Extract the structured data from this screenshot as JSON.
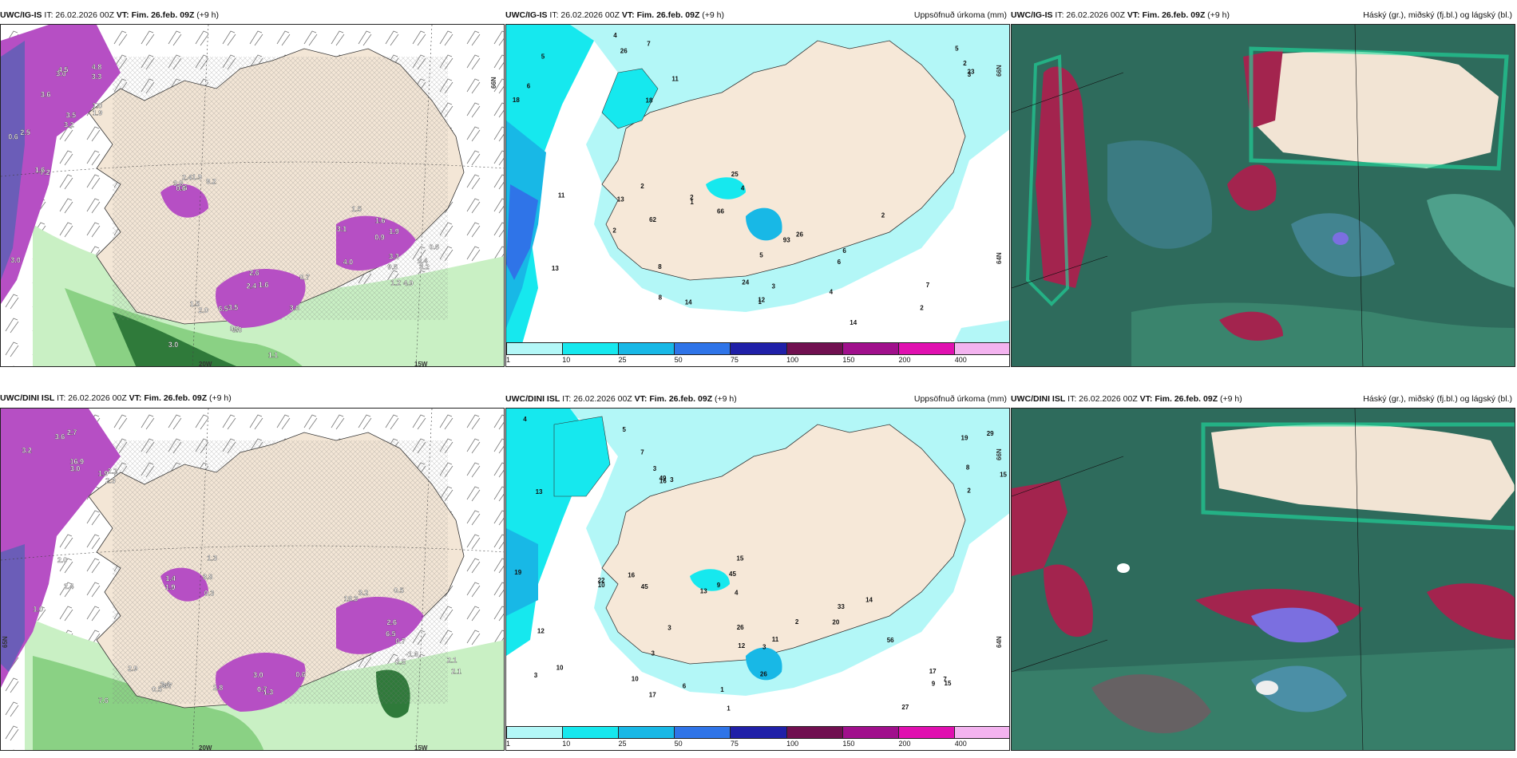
{
  "rows": [
    {
      "temp_panel": {
        "model": "UWC/IG-IS",
        "it": "IT: 26.02.2026 00Z",
        "vt": "VT: Fim. 26.feb. 09Z",
        "lead": "(+9 h)"
      },
      "precip_panel": {
        "model": "UWC/IG-IS",
        "it": "IT: 26.02.2026 00Z",
        "vt": "VT: Fim. 26.feb. 09Z",
        "lead": "(+9 h)",
        "title": "Uppsöfnuð úrkoma (mm)"
      },
      "cloud_panel": {
        "model": "UWC/IG-IS",
        "it": "IT: 26.02.2026 00Z",
        "vt": "VT: Fim. 26.feb. 09Z",
        "lead": "(+9 h)",
        "title": "Háský (gr.), miðský (fj.bl.) og lágský (bl.)"
      }
    },
    {
      "temp_panel": {
        "model": "UWC/DINI ISL",
        "it": "IT: 26.02.2026 00Z",
        "vt": "VT: Fim. 26.feb. 09Z",
        "lead": "(+9 h)"
      },
      "precip_panel": {
        "model": "UWC/DINI ISL",
        "it": "IT: 26.02.2026 00Z",
        "vt": "VT: Fim. 26.feb. 09Z",
        "lead": "(+9 h)",
        "title": "Uppsöfnuð úrkoma (mm)"
      },
      "cloud_panel": {
        "model": "UWC/DINI ISL",
        "it": "IT: 26.02.2026 00Z",
        "vt": "VT: Fim. 26.feb. 09Z",
        "lead": "(+9 h)",
        "title": "Háský (gr.), miðský (fj.bl.) og lágský (bl.)"
      }
    }
  ],
  "precip_colorbar": {
    "ticks": [
      "1",
      "10",
      "25",
      "50",
      "75",
      "100",
      "150",
      "200",
      "400"
    ],
    "colors": [
      "#b3f7f7",
      "#16e8ee",
      "#18b8e6",
      "#2f74e8",
      "#2020a8",
      "#701050",
      "#a0108c",
      "#e010b0",
      "#f3b3ef"
    ]
  },
  "grid_labels": {
    "top_temp": {
      "lon1": "20W",
      "lon2": "15W",
      "lat1": "66N"
    },
    "top_precip": {
      "lat1": "66N",
      "lat2": "64N"
    },
    "bottom_temp": {
      "lon1": "20W",
      "lon2": "15W",
      "lat1": "65N"
    },
    "bottom_precip": {
      "lat1": "66N",
      "lat2": "64N"
    }
  },
  "temp_labels": {
    "top": [
      "7.2",
      "3.0",
      "2.4",
      "4.0",
      "2.0",
      "4.9",
      "1.9",
      "3.6",
      "4.8",
      "1.6",
      "1.5",
      "1.1",
      "9.6",
      "9.2",
      "1.6",
      "3.3",
      "6.5",
      "1.6",
      "1.5",
      "1.2",
      "1.6",
      "3.0",
      "3.2",
      "2.6",
      "1.9",
      "3.0",
      "3.3",
      "2.4",
      "0.6",
      "1.0",
      "0.7",
      "0.9",
      "3.0",
      "3.2",
      "3.8",
      "4.5",
      "3.5",
      "3.6",
      "2.4",
      "0.9",
      "0.6",
      "0.6",
      "2.5",
      "1.9",
      "3.5",
      "3.1"
    ],
    "bottom": [
      "2.0",
      "2.3",
      "2.8",
      "3.2",
      "3.7",
      "2.1",
      "1.9",
      "3.6",
      "16.9",
      "1.3",
      "18.3",
      "7.6",
      "6.5",
      "0.3",
      "1.0",
      "2.1",
      "3.0",
      "2.6",
      "3.4",
      "2.5",
      "1.3",
      "2.7",
      "3.0",
      "0.6",
      "0.5",
      "2.9",
      "2.1",
      "1.4",
      "3.2",
      "1.9",
      "0.7",
      "0.7",
      "0.5",
      "-1.6",
      "3.8",
      "2.4"
    ]
  },
  "precip_labels": {
    "top": [
      "18",
      "26",
      "62",
      "66",
      "93",
      "6",
      "2",
      "3",
      "12",
      "11",
      "11",
      "13",
      "25",
      "24",
      "26",
      "14",
      "23",
      "14",
      "13",
      "18",
      "8",
      "4",
      "5",
      "6",
      "7",
      "2",
      "1",
      "5",
      "4",
      "2",
      "2",
      "3",
      "2",
      "4",
      "5",
      "8",
      "6",
      "7",
      "2",
      "1"
    ],
    "bottom": [
      "13",
      "16",
      "22",
      "15",
      "26",
      "33",
      "27",
      "29",
      "17",
      "19",
      "49",
      "45",
      "45",
      "26",
      "56",
      "17",
      "15",
      "1",
      "12",
      "3",
      "10",
      "9",
      "11",
      "20",
      "7",
      "19",
      "10",
      "10",
      "7",
      "16",
      "13",
      "12",
      "14",
      "15",
      "8",
      "6",
      "4",
      "5",
      "3",
      "4",
      "3",
      "2",
      "9",
      "2",
      "1",
      "3",
      "3",
      "3"
    ]
  }
}
